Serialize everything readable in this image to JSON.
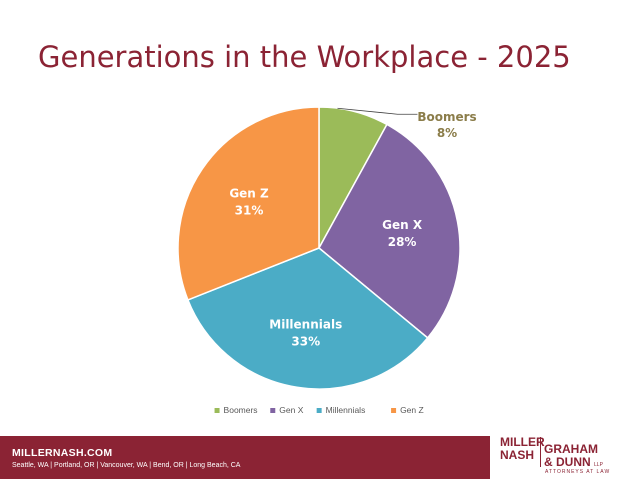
{
  "slide": {
    "title": "Generations in the Workplace - 2025"
  },
  "chart_data": {
    "type": "pie",
    "title": "",
    "categories": [
      "Boomers",
      "Gen X",
      "Millennials",
      "Gen Z"
    ],
    "values": [
      8,
      28,
      33,
      31
    ],
    "value_labels": [
      "8%",
      "28%",
      "33%",
      "31%"
    ],
    "colors": [
      "#9bbb59",
      "#8064a2",
      "#4bacc6",
      "#f79646"
    ],
    "legend": {
      "placement": "bottom",
      "entries": [
        "Boomers",
        "Gen X",
        "Millennials",
        "Gen Z"
      ]
    }
  },
  "footer": {
    "site": "MILLERNASH.COM",
    "cities": [
      "Seattle, WA",
      "Portland, OR",
      "Vancouver, WA",
      "Bend, OR",
      "Long Beach, CA"
    ],
    "logo": {
      "line1": "MILLER",
      "line2": "NASH",
      "line3": "GRAHAM",
      "line4": "& DUNN",
      "llp": "LLP",
      "tagline": "ATTORNEYS AT LAW"
    },
    "colors": {
      "band": "#8b2334"
    }
  }
}
